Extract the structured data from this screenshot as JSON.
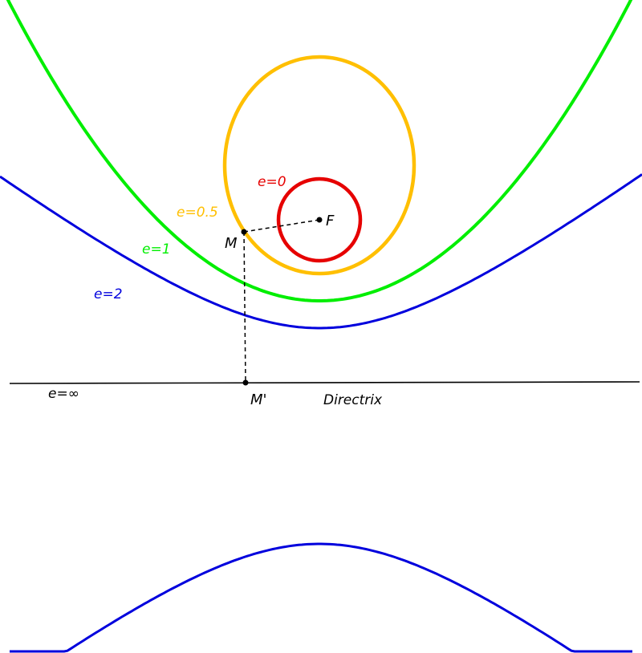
{
  "diagram": {
    "colors": {
      "circle": "#e60000",
      "ellipse": "#ffbf00",
      "parabola": "#00ee00",
      "hyperbola": "#0000dd",
      "directrix": "#000000",
      "construction": "#000000"
    },
    "labels": {
      "circle": "e=0",
      "ellipse": "e=0.5",
      "parabola": "e=1",
      "hyperbola": "e=2",
      "degenerate": "e=∞",
      "focus": "F",
      "point_m": "M",
      "point_m_prime": "M'",
      "directrix": "Directrix"
    }
  }
}
